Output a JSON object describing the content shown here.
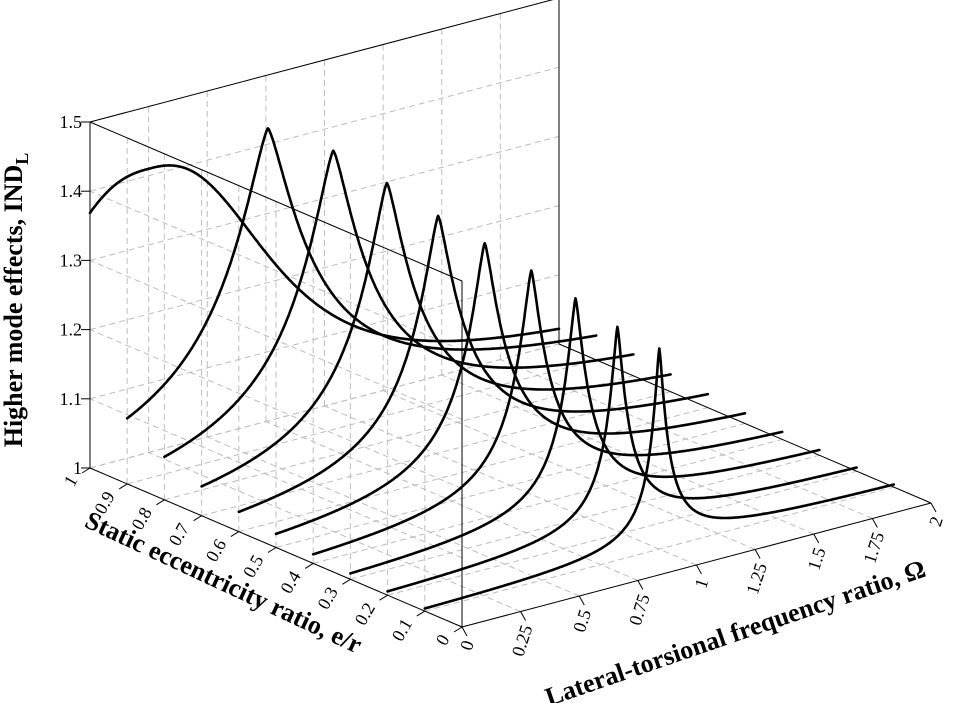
{
  "chart_data": {
    "type": "line",
    "chart_kind": "3d-waterfall",
    "zlabel": "Higher mode effects, IND",
    "zlabel_subscript": "L",
    "ylabel": "Static eccentricity ratio, e/r",
    "xlabel": "Lateral-torsional frequency ratio, Ω",
    "xlim": [
      0,
      2
    ],
    "ylim": [
      0,
      1
    ],
    "zlim": [
      1,
      1.5
    ],
    "x_ticks": [
      "0",
      "0.25",
      "0.5",
      "0.75",
      "1",
      "1.25",
      "1.5",
      "1.75",
      "2"
    ],
    "y_ticks": [
      "0",
      "0.1",
      "0.2",
      "0.3",
      "0.4",
      "0.5",
      "0.6",
      "0.7",
      "0.8",
      "0.9",
      "1"
    ],
    "z_ticks": [
      "1",
      "1.1",
      "1.2",
      "1.3",
      "1.4",
      "1.5"
    ],
    "grid": true,
    "series": [
      {
        "e_r": 0.1,
        "peak_omega": 1.0,
        "peak_value": 1.29
      },
      {
        "e_r": 0.2,
        "peak_omega": 0.98,
        "peak_value": 1.3
      },
      {
        "e_r": 0.3,
        "peak_omega": 0.96,
        "peak_value": 1.32
      },
      {
        "e_r": 0.4,
        "peak_omega": 0.93,
        "peak_value": 1.34
      },
      {
        "e_r": 0.5,
        "peak_omega": 0.89,
        "peak_value": 1.36
      },
      {
        "e_r": 0.6,
        "peak_omega": 0.85,
        "peak_value": 1.38
      },
      {
        "e_r": 0.7,
        "peak_omega": 0.79,
        "peak_value": 1.41
      },
      {
        "e_r": 0.8,
        "peak_omega": 0.72,
        "peak_value": 1.44
      },
      {
        "e_r": 0.9,
        "peak_omega": 0.6,
        "peak_value": 1.46
      },
      {
        "e_r": 1.0,
        "peak_omega": 0.25,
        "peak_value": 1.41
      }
    ]
  }
}
